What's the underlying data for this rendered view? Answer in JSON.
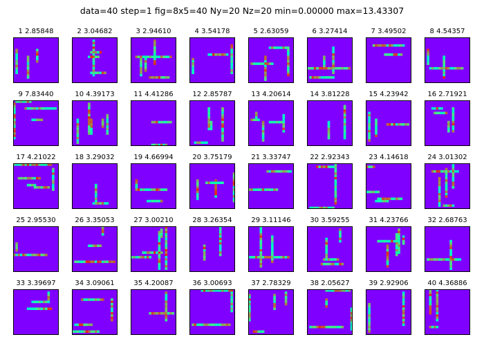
{
  "figure": {
    "title": "data=40 step=1 fig=8x5=40 Ny=20 Nz=20 min=0.00000 max=13.43307"
  },
  "chart_data": {
    "type": "heatmap",
    "colormap": "rainbow",
    "background_color": "#8000ff",
    "grid_rows": 5,
    "grid_cols": 8,
    "Ny": 20,
    "Nz": 20,
    "vmin": 0.0,
    "vmax": 13.43307,
    "panels": [
      {
        "label": "1  2.85848"
      },
      {
        "label": "2  3.04682"
      },
      {
        "label": "3  2.94610"
      },
      {
        "label": "4  3.54178"
      },
      {
        "label": "5  2.63059"
      },
      {
        "label": "6  3.27414"
      },
      {
        "label": "7  3.49502"
      },
      {
        "label": "8  4.54357"
      },
      {
        "label": "9  7.83440"
      },
      {
        "label": "10  4.39173"
      },
      {
        "label": "11  4.41286"
      },
      {
        "label": "12  2.85787"
      },
      {
        "label": "13  4.20614"
      },
      {
        "label": "14  3.81228"
      },
      {
        "label": "15  4.23942"
      },
      {
        "label": "16  2.71921"
      },
      {
        "label": "17  4.21022"
      },
      {
        "label": "18  3.29032"
      },
      {
        "label": "19  4.66994"
      },
      {
        "label": "20  3.75179"
      },
      {
        "label": "21  3.33747"
      },
      {
        "label": "22  2.92343"
      },
      {
        "label": "23  4.14618"
      },
      {
        "label": "24  3.01302"
      },
      {
        "label": "25  2.95530"
      },
      {
        "label": "26  3.35053"
      },
      {
        "label": "27  3.00210"
      },
      {
        "label": "28  3.26354"
      },
      {
        "label": "29  3.11146"
      },
      {
        "label": "30  3.59255"
      },
      {
        "label": "31  4.23766"
      },
      {
        "label": "32  2.68763"
      },
      {
        "label": "33  3.39697"
      },
      {
        "label": "34  3.09061"
      },
      {
        "label": "35  4.20087"
      },
      {
        "label": "36  3.00693"
      },
      {
        "label": "37  2.78329"
      },
      {
        "label": "38  2.05627"
      },
      {
        "label": "39  2.92906"
      },
      {
        "label": "40  4.36886"
      }
    ]
  }
}
